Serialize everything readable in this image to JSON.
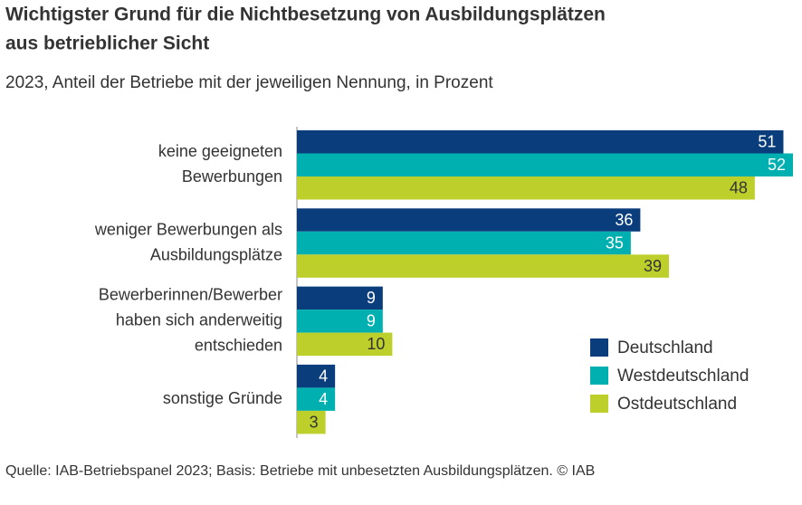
{
  "chart_data": {
    "type": "bar",
    "orientation": "horizontal",
    "title": [
      "Wichtigster Grund für die Nichtbesetzung von Ausbildungsplätzen",
      "aus betrieblicher Sicht"
    ],
    "subtitle": "2023, Anteil der Betriebe mit der jeweiligen Nennung, in Prozent",
    "categories": [
      [
        "keine geeigneten",
        "Bewerbungen"
      ],
      [
        "weniger Bewerbungen als",
        "Ausbildungsplätze"
      ],
      [
        "Bewerberinnen/Bewerber",
        "haben sich anderweitig",
        "entschieden"
      ],
      [
        "sonstige Gründe"
      ]
    ],
    "series": [
      {
        "name": "Deutschland",
        "color": "#0a3d7c",
        "values": [
          51,
          36,
          9,
          4
        ]
      },
      {
        "name": "Westdeutschland",
        "color": "#00b0b0",
        "values": [
          52,
          35,
          9,
          4
        ]
      },
      {
        "name": "Ostdeutschland",
        "color": "#bccf2b",
        "values": [
          48,
          39,
          10,
          3
        ]
      }
    ],
    "xlim": [
      0,
      52
    ],
    "legend": "bottom right",
    "source": "Quelle: IAB-Betriebspanel 2023; Basis: Betriebe mit unbesetzten Ausbildungsplätzen.  © IAB"
  }
}
